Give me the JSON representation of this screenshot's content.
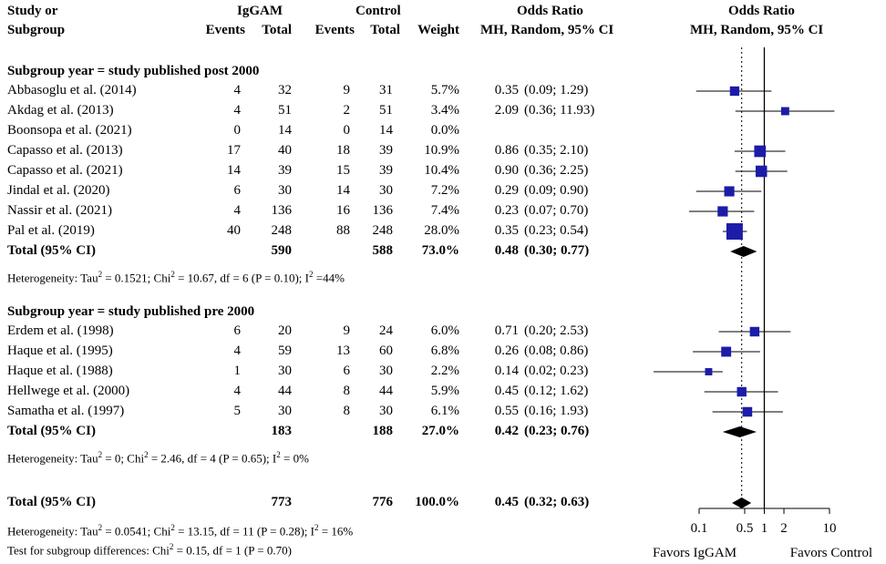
{
  "headers": {
    "study_line1": "Study or",
    "study_line2": "Subgroup",
    "igg_group": "IgGAM",
    "ctrl_group": "Control",
    "events": "Events",
    "total": "Total",
    "weight": "Weight",
    "or_line1": "Odds Ratio",
    "or_line2": "MH, Random, 95% CI",
    "plot_line1": "Odds Ratio",
    "plot_line2": "MH, Random, 95% CI"
  },
  "subgroups": [
    {
      "title": "Subgroup year = study published post 2000",
      "studies": [
        {
          "name": "Abbasoglu et al. (2014)",
          "ev1": "4",
          "t1": "32",
          "ev2": "9",
          "t2": "31",
          "w": "5.7%",
          "or": "0.35",
          "ci": "(0.09; 1.29)",
          "or_v": 0.35,
          "lo": 0.09,
          "hi": 1.29,
          "wv": 5.7
        },
        {
          "name": "Akdag et al. (2013)",
          "ev1": "4",
          "t1": "51",
          "ev2": "2",
          "t2": "51",
          "w": "3.4%",
          "or": "2.09",
          "ci": "(0.36; 11.93)",
          "or_v": 2.09,
          "lo": 0.36,
          "hi": 11.93,
          "wv": 3.4
        },
        {
          "name": "Boonsopa et al. (2021)",
          "ev1": "0",
          "t1": "14",
          "ev2": "0",
          "t2": "14",
          "w": "0.0%",
          "or": "",
          "ci": "",
          "or_v": null,
          "lo": null,
          "hi": null,
          "wv": 0
        },
        {
          "name": "Capasso et al. (2013)",
          "ev1": "17",
          "t1": "40",
          "ev2": "18",
          "t2": "39",
          "w": "10.9%",
          "or": "0.86",
          "ci": "(0.35; 2.10)",
          "or_v": 0.86,
          "lo": 0.35,
          "hi": 2.1,
          "wv": 10.9
        },
        {
          "name": "Capasso et al. (2021)",
          "ev1": "14",
          "t1": "39",
          "ev2": "15",
          "t2": "39",
          "w": "10.4%",
          "or": "0.90",
          "ci": "(0.36; 2.25)",
          "or_v": 0.9,
          "lo": 0.36,
          "hi": 2.25,
          "wv": 10.4
        },
        {
          "name": "Jindal et al. (2020)",
          "ev1": "6",
          "t1": "30",
          "ev2": "14",
          "t2": "30",
          "w": "7.2%",
          "or": "0.29",
          "ci": "(0.09; 0.90)",
          "or_v": 0.29,
          "lo": 0.09,
          "hi": 0.9,
          "wv": 7.2
        },
        {
          "name": "Nassir et al. (2021)",
          "ev1": "4",
          "t1": "136",
          "ev2": "16",
          "t2": "136",
          "w": "7.4%",
          "or": "0.23",
          "ci": "(0.07; 0.70)",
          "or_v": 0.23,
          "lo": 0.07,
          "hi": 0.7,
          "wv": 7.4
        },
        {
          "name": "Pal et al. (2019)",
          "ev1": "40",
          "t1": "248",
          "ev2": "88",
          "t2": "248",
          "w": "28.0%",
          "or": "0.35",
          "ci": "(0.23; 0.54)",
          "or_v": 0.35,
          "lo": 0.23,
          "hi": 0.54,
          "wv": 28.0
        }
      ],
      "total": {
        "label": "Total (95% CI)",
        "t1": "590",
        "t2": "588",
        "w": "73.0%",
        "or": "0.48",
        "ci": "(0.30; 0.77)",
        "or_v": 0.48,
        "lo": 0.3,
        "hi": 0.77
      },
      "het_pre": "Heterogeneity: Tau",
      "het_tau": "2",
      "het_mid": " = 0.1521; Chi",
      "het_chi": "2",
      "het_post": " = 10.67,  df = 6 (P = 0.10); I",
      "het_i": "2",
      "het_end": " =44%"
    },
    {
      "title": "Subgroup year = study published pre 2000",
      "studies": [
        {
          "name": "Erdem et al. (1998)",
          "ev1": "6",
          "t1": "20",
          "ev2": "9",
          "t2": "24",
          "w": "6.0%",
          "or": "0.71",
          "ci": "(0.20; 2.53)",
          "or_v": 0.71,
          "lo": 0.2,
          "hi": 2.53,
          "wv": 6.0
        },
        {
          "name": "Haque et al. (1995)",
          "ev1": "4",
          "t1": "59",
          "ev2": "13",
          "t2": "60",
          "w": "6.8%",
          "or": "0.26",
          "ci": "(0.08; 0.86)",
          "or_v": 0.26,
          "lo": 0.08,
          "hi": 0.86,
          "wv": 6.8
        },
        {
          "name": "Haque et al. (1988)",
          "ev1": "1",
          "t1": "30",
          "ev2": "6",
          "t2": "30",
          "w": "2.2%",
          "or": "0.14",
          "ci": "(0.02; 0.23)",
          "or_v": 0.14,
          "lo": 0.02,
          "hi": 0.23,
          "wv": 2.2
        },
        {
          "name": "Hellwege et al. (2000)",
          "ev1": "4",
          "t1": "44",
          "ev2": "8",
          "t2": "44",
          "w": "5.9%",
          "or": "0.45",
          "ci": "(0.12; 1.62)",
          "or_v": 0.45,
          "lo": 0.12,
          "hi": 1.62,
          "wv": 5.9
        },
        {
          "name": "Samatha et al. (1997)",
          "ev1": "5",
          "t1": "30",
          "ev2": "8",
          "t2": "30",
          "w": "6.1%",
          "or": "0.55",
          "ci": "(0.16; 1.93)",
          "or_v": 0.55,
          "lo": 0.16,
          "hi": 1.93,
          "wv": 6.1
        }
      ],
      "total": {
        "label": "Total (95% CI)",
        "t1": "183",
        "t2": "188",
        "w": "27.0%",
        "or": "0.42",
        "ci": "(0.23; 0.76)",
        "or_v": 0.42,
        "lo": 0.23,
        "hi": 0.76
      },
      "het_pre": "Heterogeneity: Tau",
      "het_tau": "2",
      "het_mid": " = 0; Chi",
      "het_chi": "2",
      "het_post": " = 2.46,  df = 4 (P = 0.65); I",
      "het_i": "2",
      "het_end": " = 0%"
    }
  ],
  "overall": {
    "label": "Total (95% CI)",
    "t1": "773",
    "t2": "776",
    "w": "100.0%",
    "or": "0.45",
    "ci": "(0.32; 0.63)",
    "or_v": 0.45,
    "lo": 0.32,
    "hi": 0.63,
    "het_pre": "Heterogeneity: Tau",
    "het_tau": "2",
    "het_mid": " = 0.0541; Chi",
    "het_chi": "2",
    "het_post": " = 13.15,  df = 11 (P = 0.28); I",
    "het_i": "2",
    "het_end": " = 16%",
    "test_pre": "Test for subgroup differences: Chi",
    "test_chi": "2",
    "test_post": " = 0.15,  df = 1 (P = 0.70)"
  },
  "chart_data": {
    "type": "scatter",
    "title": "Odds Ratio MH, Random, 95% CI",
    "x_scale": "log",
    "xlim": [
      0.1,
      10
    ],
    "null_line": 1,
    "pooled_dotted_line": 0.45,
    "ticks": [
      0.1,
      0.5,
      1,
      2,
      10
    ],
    "tick_labels": [
      "0.1",
      "0.5",
      "1",
      "2",
      "10"
    ],
    "favors_left": "Favors IgGAM",
    "favors_right": "Favors Control",
    "marker_color": "#1c1ca8"
  }
}
